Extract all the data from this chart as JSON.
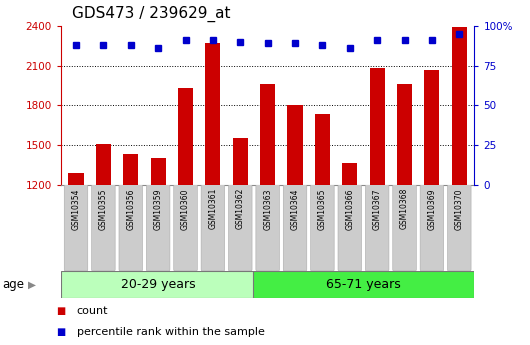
{
  "title": "GDS473 / 239629_at",
  "samples": [
    "GSM10354",
    "GSM10355",
    "GSM10356",
    "GSM10359",
    "GSM10360",
    "GSM10361",
    "GSM10362",
    "GSM10363",
    "GSM10364",
    "GSM10365",
    "GSM10366",
    "GSM10367",
    "GSM10368",
    "GSM10369",
    "GSM10370"
  ],
  "counts": [
    1290,
    1510,
    1430,
    1400,
    1930,
    2270,
    1555,
    1960,
    1800,
    1730,
    1360,
    2080,
    1960,
    2070,
    2390
  ],
  "percentiles": [
    88,
    88,
    88,
    86,
    91,
    91,
    90,
    89,
    89,
    88,
    86,
    91,
    91,
    91,
    95
  ],
  "group1_label": "20-29 years",
  "group2_label": "65-71 years",
  "group1_count": 7,
  "group2_count": 8,
  "ylim_left": [
    1200,
    2400
  ],
  "ylim_right": [
    0,
    100
  ],
  "yticks_left": [
    1200,
    1500,
    1800,
    2100,
    2400
  ],
  "yticks_right": [
    0,
    25,
    50,
    75,
    100
  ],
  "bar_color": "#cc0000",
  "marker_color": "#0000cc",
  "group1_bg": "#bbffbb",
  "group2_bg": "#44ee44",
  "tick_label_bg": "#cccccc",
  "grid_ticks": [
    1500,
    1800,
    2100
  ],
  "xlabel": "age",
  "legend_count_label": "count",
  "legend_pct_label": "percentile rank within the sample",
  "title_fontsize": 11,
  "tick_fontsize": 7.5,
  "legend_fontsize": 8,
  "group_fontsize": 9,
  "sample_fontsize": 5.5
}
